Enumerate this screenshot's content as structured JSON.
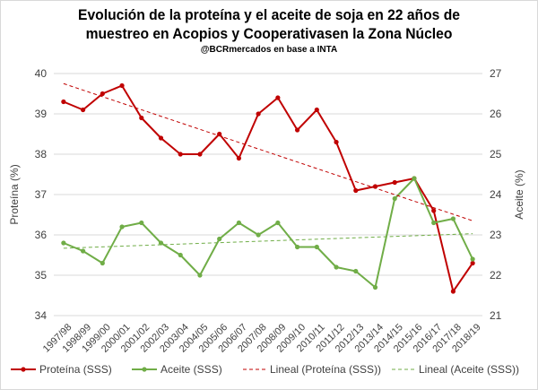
{
  "chart_data": {
    "type": "line",
    "title_line1": "Evolución de la proteína y el aceite de soja en 22 años de",
    "title_line2": "muestreo en Acopios y Cooperativasen la Zona Núcleo",
    "subtitle": "@BCRmercados en base a INTA",
    "ylabel_left": "Proteína (%)",
    "ylabel_right": "Aceite (%)",
    "ylim_left": [
      34,
      40
    ],
    "yticks_left": [
      "34",
      "35",
      "36",
      "37",
      "38",
      "39",
      "40"
    ],
    "ylim_right": [
      21,
      27
    ],
    "yticks_right": [
      "21",
      "22",
      "23",
      "24",
      "25",
      "26",
      "27"
    ],
    "grid": "horizontal",
    "legend_position": "bottom",
    "categories": [
      "1997/98",
      "1998/99",
      "1999/00",
      "2000/01",
      "2001/02",
      "2002/03",
      "2003/04",
      "2004/05",
      "2005/06",
      "2006/07",
      "2007/08",
      "2008/09",
      "2009/10",
      "2010/11",
      "2011/12",
      "2012/13",
      "2013/14",
      "2014/15",
      "2015/16",
      "2016/17",
      "2017/18",
      "2018/19"
    ],
    "series": [
      {
        "name": "Proteína (SSS)",
        "axis": "left",
        "color": "#c00000",
        "style": "solid-markers",
        "values": [
          39.3,
          39.1,
          39.5,
          39.7,
          38.9,
          38.4,
          38.0,
          38.0,
          38.5,
          37.9,
          39.0,
          39.4,
          38.6,
          39.1,
          38.3,
          37.1,
          37.2,
          37.3,
          37.4,
          36.6,
          34.6,
          35.3
        ]
      },
      {
        "name": "Aceite (SSS)",
        "axis": "right",
        "color": "#70ad47",
        "style": "solid-markers",
        "values": [
          22.8,
          22.6,
          22.3,
          23.2,
          23.3,
          22.8,
          22.5,
          22.0,
          22.9,
          23.3,
          23.0,
          23.3,
          22.7,
          22.7,
          22.2,
          22.1,
          21.7,
          23.9,
          24.4,
          23.3,
          23.4,
          22.4
        ]
      },
      {
        "name": "Lineal (Proteína (SSS))",
        "axis": "left",
        "color": "#c00000",
        "style": "dashed",
        "start": 39.75,
        "end": 36.35
      },
      {
        "name": "Lineal (Aceite (SSS))",
        "axis": "right",
        "color": "#70ad47",
        "style": "dashed",
        "start": 22.67,
        "end": 23.03
      }
    ]
  }
}
